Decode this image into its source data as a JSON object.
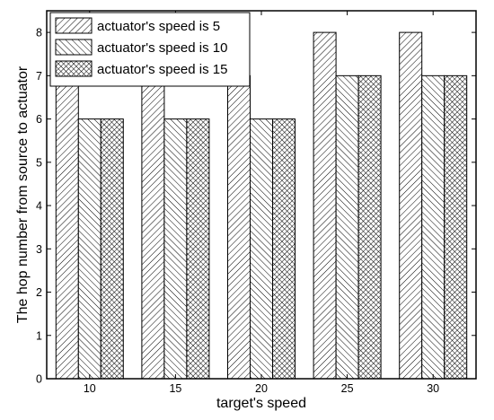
{
  "chart_data": {
    "type": "bar",
    "xlabel": "target's speed",
    "ylabel": "The hop number from source to actuator",
    "categories": [
      "10",
      "15",
      "20",
      "25",
      "30"
    ],
    "ylim": [
      0,
      8.5
    ],
    "yticks": [
      0,
      1,
      2,
      3,
      4,
      5,
      6,
      7,
      8
    ],
    "series": [
      {
        "name": "actuator's speed is 5",
        "values": [
          7,
          7,
          7,
          8,
          8
        ],
        "pattern": "forward-hatch"
      },
      {
        "name": "actuator's speed is 10",
        "values": [
          6,
          6,
          6,
          7,
          7
        ],
        "pattern": "back-hatch"
      },
      {
        "name": "actuator's speed is 15",
        "values": [
          6,
          6,
          6,
          7,
          7
        ],
        "pattern": "cross-hatch"
      }
    ],
    "legend_position": "top-left",
    "grid": false,
    "colors": {
      "bar_fill": "#ffffff",
      "bar_stroke": "#000000",
      "hatch": "#000000"
    }
  }
}
